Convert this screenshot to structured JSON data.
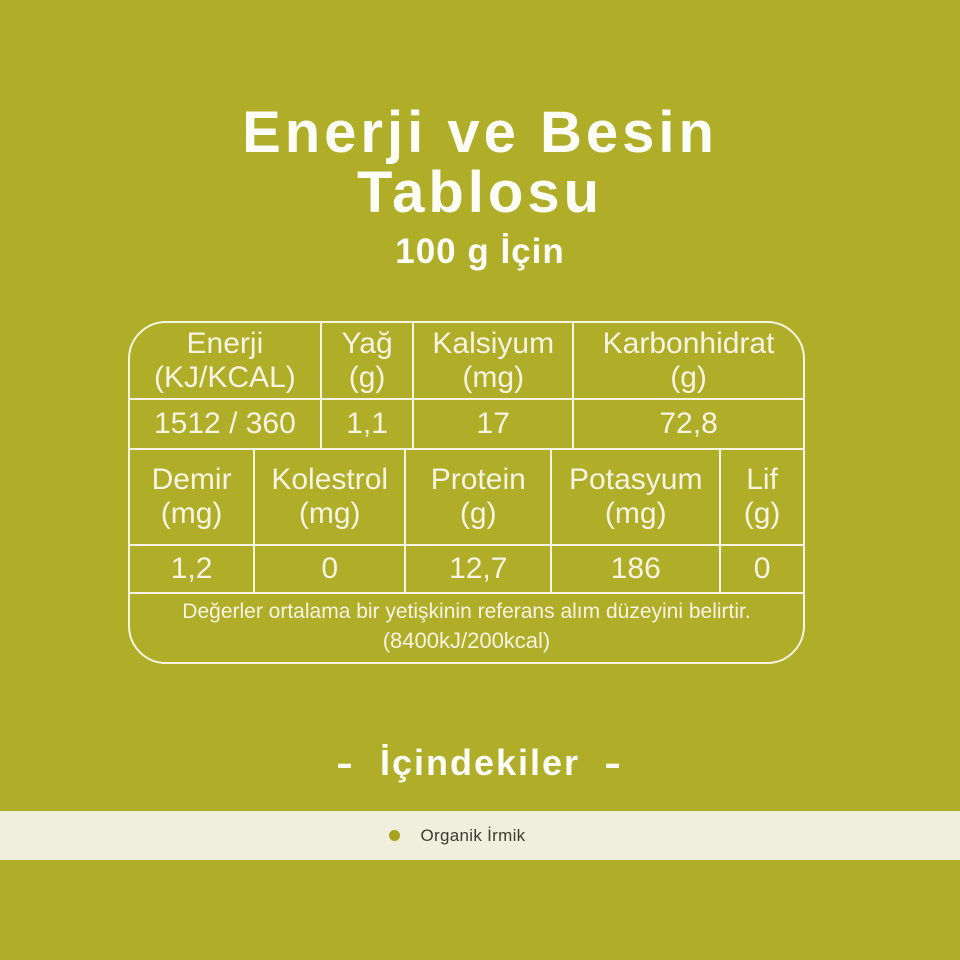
{
  "header": {
    "title_line1": "Enerji ve Besin",
    "title_line2": "Tablosu",
    "subtitle": "100 g İçin"
  },
  "table": {
    "row1_headers": [
      {
        "name": "Enerji",
        "unit": "(KJ/KCAL)"
      },
      {
        "name": "Yağ",
        "unit": "(g)"
      },
      {
        "name": "Kalsiyum",
        "unit": "(mg)"
      },
      {
        "name": "Karbonhidrat",
        "unit": "(g)"
      }
    ],
    "row1_values": [
      "1512 / 360",
      "1,1",
      "17",
      "72,8"
    ],
    "row2_headers": [
      {
        "name": "Demir",
        "unit": "(mg)"
      },
      {
        "name": "Kolestrol",
        "unit": "(mg)"
      },
      {
        "name": "Protein",
        "unit": "(g)"
      },
      {
        "name": "Potasyum",
        "unit": "(mg)"
      },
      {
        "name": "Lif",
        "unit": "(g)"
      }
    ],
    "row2_values": [
      "1,2",
      "0",
      "12,7",
      "186",
      "0"
    ],
    "footnote_line1": "Değerler ortalama bir yetişkinin referans alım düzeyini belirtir.",
    "footnote_line2": "(8400kJ/200kcal)"
  },
  "ingredients": {
    "dash_left": "-",
    "heading": "İçindekiler",
    "dash_right": "-",
    "items": [
      {
        "label": "Organik İrmik"
      }
    ]
  },
  "colors": {
    "background": "#b0ad28",
    "text_white": "#fdfdf8",
    "table_ivory": "#f6f4e3",
    "strip_background": "#f0eedc",
    "strip_text": "#3b3b33",
    "bullet": "#a6a41f"
  }
}
